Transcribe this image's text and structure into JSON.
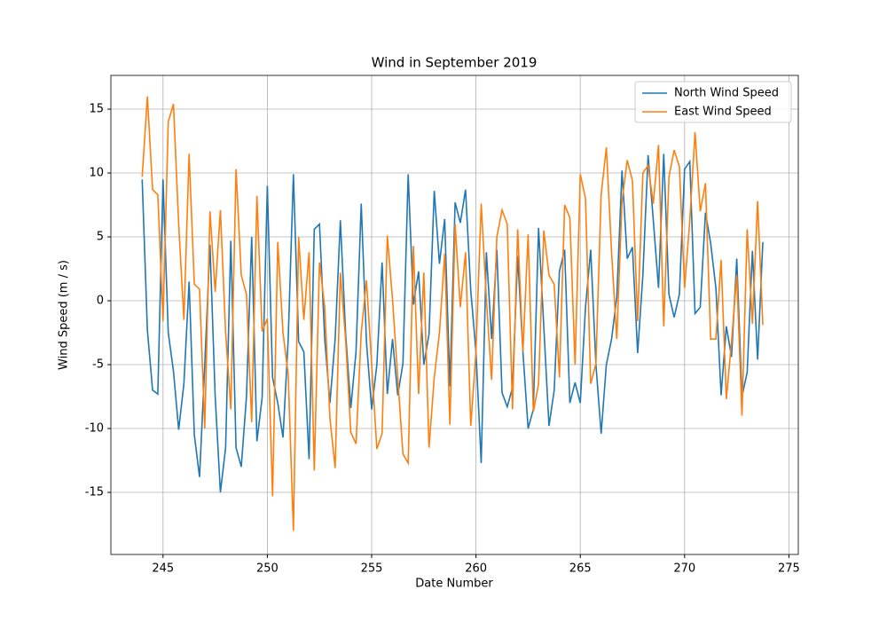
{
  "chart_data": {
    "type": "line",
    "title": "Wind in September 2019",
    "x_label": "Date Number",
    "y_label": "Wind Speed (m / s)",
    "x": [
      244,
      244.25,
      244.5,
      244.75,
      245,
      245.25,
      245.5,
      245.75,
      246,
      246.25,
      246.5,
      246.75,
      247,
      247.25,
      247.5,
      247.75,
      248,
      248.25,
      248.5,
      248.75,
      249,
      249.25,
      249.5,
      249.75,
      250,
      250.25,
      250.5,
      250.75,
      251,
      251.25,
      251.5,
      251.75,
      252,
      252.25,
      252.5,
      252.75,
      253,
      253.25,
      253.5,
      253.75,
      254,
      254.25,
      254.5,
      254.75,
      255,
      255.25,
      255.5,
      255.75,
      256,
      256.25,
      256.5,
      256.75,
      257,
      257.25,
      257.5,
      257.75,
      258,
      258.25,
      258.5,
      258.75,
      259,
      259.25,
      259.5,
      259.75,
      260,
      260.25,
      260.5,
      260.75,
      261,
      261.25,
      261.5,
      261.75,
      262,
      262.25,
      262.5,
      262.75,
      263,
      263.25,
      263.5,
      263.75,
      264,
      264.25,
      264.5,
      264.75,
      265,
      265.25,
      265.5,
      265.75,
      266,
      266.25,
      266.5,
      266.75,
      267,
      267.25,
      267.5,
      267.75,
      268,
      268.25,
      268.5,
      268.75,
      269,
      269.25,
      269.5,
      269.75,
      270,
      270.25,
      270.5,
      270.75,
      271,
      271.25,
      271.5,
      271.75,
      272,
      272.25,
      272.5,
      272.75,
      273,
      273.25,
      273.5,
      273.75
    ],
    "series": [
      {
        "name": "North Wind Speed",
        "color": "#1f77b4",
        "values": [
          9.5,
          -2.3,
          -7.0,
          -7.3,
          9.5,
          -2.5,
          -5.5,
          -10.1,
          -6.5,
          1.5,
          -10.5,
          -13.8,
          -5,
          4.4,
          -7.5,
          -15,
          -11.5,
          4.7,
          -11.5,
          -13,
          -7.5,
          5,
          -11,
          -7.6,
          9.0,
          -6,
          -8,
          -10.7,
          -3,
          9.9,
          -3.2,
          -4,
          -12.4,
          5.6,
          6,
          -3,
          -8,
          -3,
          6.3,
          -2.5,
          -8.4,
          -4,
          7.6,
          -3.2,
          -8.5,
          -5,
          3,
          -7.3,
          -3,
          -7.4,
          -4.9,
          9.9,
          -0.3,
          2.3,
          -5,
          -2.6,
          8.6,
          2.9,
          6.4,
          -6.7,
          7.7,
          6.1,
          8.7,
          0.8,
          -4,
          -12.7,
          3.8,
          -3,
          4,
          -7.2,
          -8.3,
          -6.8,
          3.5,
          -4,
          -10,
          -8.5,
          5.7,
          -2,
          -9.8,
          -7,
          2.3,
          4,
          -8,
          -6.4,
          -8,
          -0.5,
          4,
          -5,
          -10.4,
          -5,
          -3,
          0.3,
          10.2,
          3.3,
          4.2,
          -4.1,
          2,
          11.4,
          6.3,
          1,
          11.5,
          0.5,
          -1.3,
          0.5,
          10.3,
          10.9,
          -1,
          -0.5,
          6.9,
          4.5,
          1,
          -7.4,
          -2,
          -4.4,
          3.3,
          -7.5,
          -5.6,
          3.9,
          -4.6,
          4.6
        ]
      },
      {
        "name": "East Wind Speed",
        "color": "#ff7f0e",
        "values": [
          9.7,
          16,
          8.7,
          8.3,
          -1.6,
          14,
          15.4,
          6,
          -1.5,
          11.5,
          1.3,
          0.9,
          -10,
          7,
          0.7,
          7.1,
          -2.5,
          -8.5,
          10.3,
          2,
          0.5,
          -9.5,
          8.2,
          -2.4,
          -1.4,
          -15.3,
          4.6,
          -2.5,
          -5.8,
          -18,
          5,
          -1.5,
          3.8,
          -13.3,
          3,
          -0.5,
          -9.2,
          -13.1,
          2.2,
          -3,
          -10.3,
          -11.2,
          -2.5,
          1.6,
          -5,
          -11.6,
          -10.4,
          5.1,
          0.1,
          -6,
          -12,
          -12.7,
          4.3,
          -7.3,
          2.2,
          -11.5,
          -6,
          -2.5,
          3.7,
          -9.7,
          6,
          -0.5,
          3.8,
          -9.8,
          -4,
          7.6,
          0.1,
          -6.2,
          5,
          7.1,
          6,
          -8.5,
          5.6,
          -4,
          5.2,
          -8.7,
          -6.5,
          5.5,
          2,
          1.3,
          -6,
          7.5,
          6.5,
          -5,
          9.9,
          8,
          -6.5,
          -4.9,
          8.3,
          12,
          3.8,
          -3,
          7.8,
          11,
          9.4,
          -1.6,
          10,
          10.6,
          7.6,
          12.2,
          -2,
          9.7,
          11.8,
          10.5,
          1,
          6.3,
          13.2,
          7,
          9.2,
          -3,
          -3,
          3.2,
          -7.7,
          -3.2,
          2,
          -9,
          5.6,
          -1.8,
          7.8,
          -1.9
        ]
      }
    ],
    "xlim": [
      242.5,
      275.45
    ],
    "ylim": [
      -19.86,
      17.64
    ],
    "xticks": [
      245,
      250,
      255,
      260,
      265,
      270,
      275
    ],
    "yticks": [
      -15,
      -10,
      -5,
      0,
      5,
      10,
      15
    ],
    "grid": true,
    "legend": "upper right"
  }
}
